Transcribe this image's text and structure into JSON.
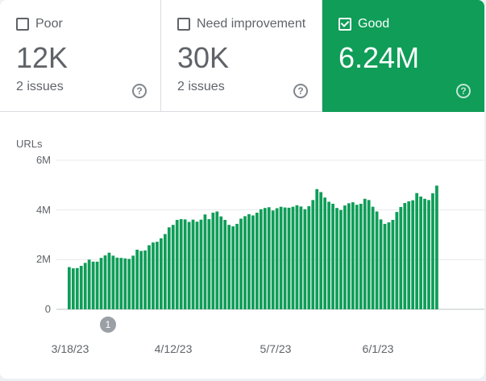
{
  "tiles": [
    {
      "label": "Poor",
      "value": "12K",
      "sub": "2 issues",
      "checked": false
    },
    {
      "label": "Need improvement",
      "value": "30K",
      "sub": "2 issues",
      "checked": false
    },
    {
      "label": "Good",
      "value": "6.24M",
      "sub": "",
      "checked": true
    }
  ],
  "colors": {
    "good": "#0f9d58",
    "needs_improvement": "#f4b400",
    "poor": "#db4437"
  },
  "annotation": {
    "label": "1",
    "date": "3/22/23"
  },
  "chart_data": {
    "type": "bar",
    "stacked": true,
    "ylabel": "URLs",
    "ylim": [
      0,
      6000000
    ],
    "y_ticks": [
      "0",
      "2M",
      "4M",
      "6M"
    ],
    "x_ticks": [
      "3/18/23",
      "4/12/23",
      "5/7/23",
      "6/1/23"
    ],
    "x_start": "3/18/23",
    "grid": true,
    "series": [
      {
        "name": "Good",
        "color": "#0f9d58",
        "values": [
          1.7,
          1.65,
          1.66,
          1.75,
          1.87,
          2.0,
          1.92,
          1.92,
          2.07,
          2.17,
          2.28,
          2.16,
          2.08,
          2.07,
          2.05,
          2.03,
          2.16,
          2.4,
          2.35,
          2.37,
          2.58,
          2.69,
          2.72,
          2.86,
          3.03,
          3.3,
          3.4,
          3.6,
          3.63,
          3.62,
          3.52,
          3.61,
          3.53,
          3.61,
          3.82,
          3.63,
          3.89,
          3.94,
          3.74,
          3.6,
          3.4,
          3.34,
          3.44,
          3.65,
          3.75,
          3.83,
          3.78,
          3.89,
          4.03,
          4.08,
          4.11,
          3.98,
          4.07,
          4.13,
          4.1,
          4.09,
          4.13,
          4.19,
          4.14,
          4.03,
          4.15,
          4.4,
          4.84,
          4.72,
          4.5,
          4.33,
          4.25,
          4.08,
          4.0,
          4.18,
          4.27,
          4.31,
          4.21,
          4.25,
          4.45,
          4.4,
          4.13,
          3.94,
          3.62,
          3.44,
          3.5,
          3.6,
          3.92,
          4.12,
          4.28,
          4.35,
          4.39,
          4.68,
          4.54,
          4.45,
          4.4,
          4.67,
          4.98
        ]
      }
    ]
  }
}
